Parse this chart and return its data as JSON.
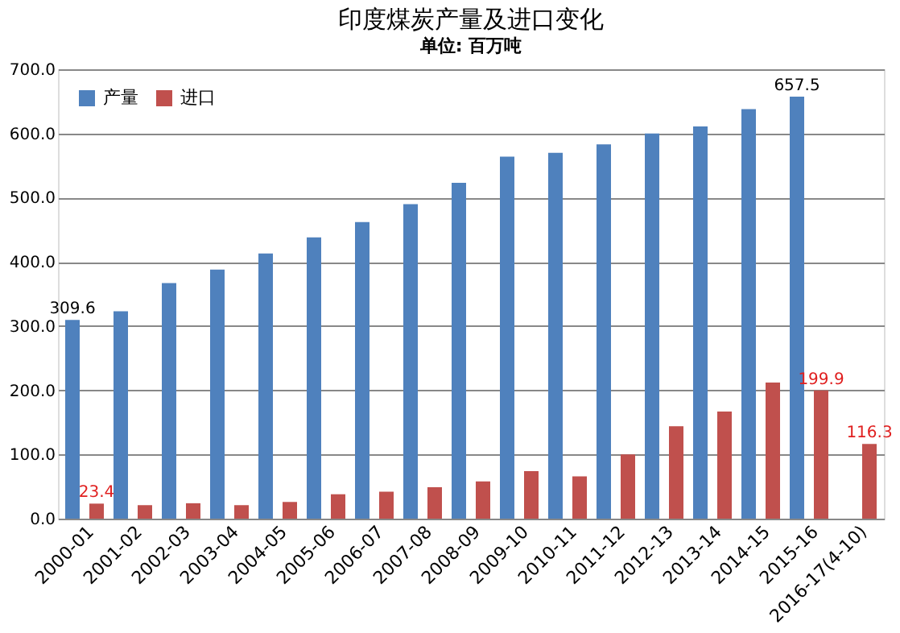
{
  "chart_data": {
    "type": "bar",
    "title": "印度煤炭产量及进口变化",
    "subtitle": "单位: 百万吨",
    "categories": [
      "2000-01",
      "2001-02",
      "2002-03",
      "2003-04",
      "2004-05",
      "2005-06",
      "2006-07",
      "2007-08",
      "2008-09",
      "2009-10",
      "2010-11",
      "2011-12",
      "2012-13",
      "2013-14",
      "2014-15",
      "2015-16",
      "2016-17(4-10)"
    ],
    "series": [
      {
        "name": "产量",
        "color": "#4f81bd",
        "values": [
          309.6,
          323,
          367,
          388,
          413,
          438,
          462,
          490,
          523,
          564,
          570,
          583,
          600,
          611,
          638,
          657.5,
          null
        ],
        "value_labels": [
          "309.6",
          null,
          null,
          null,
          null,
          null,
          null,
          null,
          null,
          null,
          null,
          null,
          null,
          null,
          null,
          "657.5",
          null
        ]
      },
      {
        "name": "进口",
        "color": "#c0504d",
        "values": [
          23.4,
          21,
          24,
          21,
          26,
          38,
          42,
          49,
          58,
          74,
          66,
          100,
          144,
          167,
          212,
          199.9,
          116.3
        ],
        "value_labels": [
          "23.4",
          null,
          null,
          null,
          null,
          null,
          null,
          null,
          null,
          null,
          null,
          null,
          null,
          null,
          null,
          "199.9",
          "116.3"
        ]
      }
    ],
    "ylim": [
      0,
      700
    ],
    "yticks": [
      {
        "value": 0,
        "label": "0.0"
      },
      {
        "value": 100,
        "label": "100.0"
      },
      {
        "value": 200,
        "label": "200.0"
      },
      {
        "value": 300,
        "label": "300.0"
      },
      {
        "value": 400,
        "label": "400.0"
      },
      {
        "value": 500,
        "label": "500.0"
      },
      {
        "value": 600,
        "label": "600.0"
      },
      {
        "value": 700,
        "label": "700.0"
      }
    ],
    "grid": "y",
    "legend": "top left"
  }
}
